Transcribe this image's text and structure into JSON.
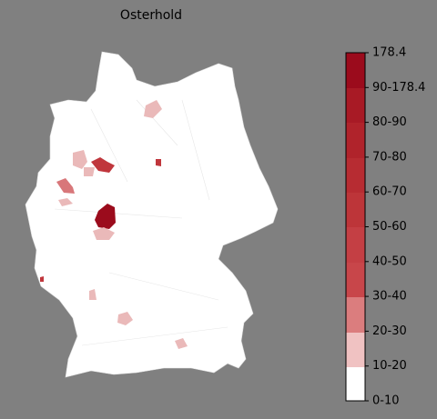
{
  "title": "Osterhold",
  "colorbar": {
    "labels": [
      "178.4",
      "90-178.4",
      "80-90",
      "70-80",
      "60-70",
      "50-60",
      "40-50",
      "30-40",
      "20-30",
      "10-20",
      "0-10"
    ]
  }
}
